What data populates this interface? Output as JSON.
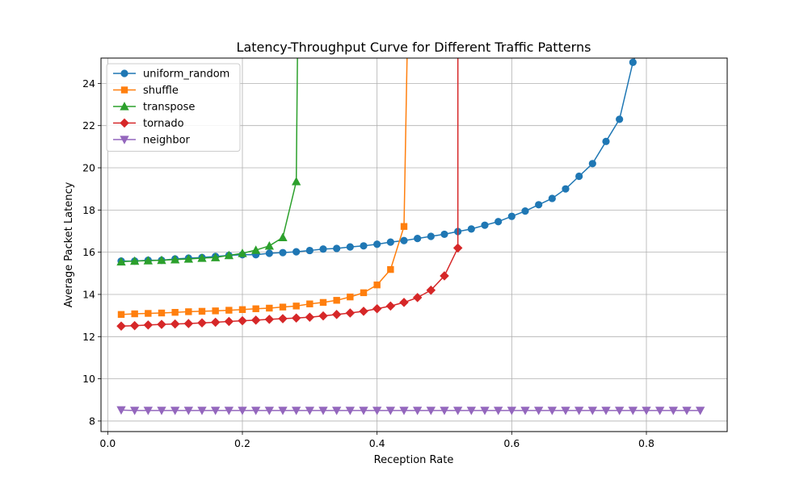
{
  "chart_data": {
    "type": "line",
    "title": "Latency-Throughput Curve for Different Traffic Patterns",
    "xlabel": "Reception Rate",
    "ylabel": "Average Packet Latency",
    "xlim": [
      -0.01,
      0.92
    ],
    "ylim": [
      7.5,
      25.2
    ],
    "xticks": [
      0.0,
      0.2,
      0.4,
      0.6,
      0.8
    ],
    "xtick_labels": [
      "0.0",
      "0.2",
      "0.4",
      "0.6",
      "0.8"
    ],
    "yticks": [
      8,
      10,
      12,
      14,
      16,
      18,
      20,
      22,
      24
    ],
    "ytick_labels": [
      "8",
      "10",
      "12",
      "14",
      "16",
      "18",
      "20",
      "22",
      "24"
    ],
    "grid": true,
    "legend_position": "top-left",
    "series": [
      {
        "name": "uniform_random",
        "color": "#1f77b4",
        "marker": "circle",
        "x": [
          0.02,
          0.04,
          0.06,
          0.08,
          0.1,
          0.12,
          0.14,
          0.16,
          0.18,
          0.2,
          0.22,
          0.24,
          0.26,
          0.28,
          0.3,
          0.32,
          0.34,
          0.36,
          0.38,
          0.4,
          0.42,
          0.44,
          0.46,
          0.48,
          0.5,
          0.52,
          0.54,
          0.56,
          0.58,
          0.6,
          0.62,
          0.64,
          0.66,
          0.68,
          0.7,
          0.72,
          0.74,
          0.76,
          0.78,
          0.8
        ],
        "y": [
          15.58,
          15.58,
          15.62,
          15.62,
          15.68,
          15.72,
          15.75,
          15.8,
          15.85,
          15.88,
          15.88,
          15.95,
          15.98,
          16.02,
          16.08,
          16.15,
          16.18,
          16.25,
          16.3,
          16.38,
          16.48,
          16.55,
          16.65,
          16.75,
          16.85,
          16.98,
          17.1,
          17.28,
          17.45,
          17.7,
          17.95,
          18.25,
          18.55,
          19.0,
          19.6,
          20.2,
          21.25,
          22.3,
          25.0,
          26.5
        ]
      },
      {
        "name": "shuffle",
        "color": "#ff7f0e",
        "marker": "square",
        "x": [
          0.02,
          0.04,
          0.06,
          0.08,
          0.1,
          0.12,
          0.14,
          0.16,
          0.18,
          0.2,
          0.22,
          0.24,
          0.26,
          0.28,
          0.3,
          0.32,
          0.34,
          0.36,
          0.38,
          0.4,
          0.42,
          0.44,
          0.445
        ],
        "y": [
          13.05,
          13.08,
          13.1,
          13.12,
          13.15,
          13.18,
          13.2,
          13.22,
          13.25,
          13.28,
          13.32,
          13.35,
          13.4,
          13.45,
          13.55,
          13.62,
          13.72,
          13.88,
          14.08,
          14.45,
          15.18,
          17.22,
          26.0
        ]
      },
      {
        "name": "transpose",
        "color": "#2ca02c",
        "marker": "triangle-up",
        "x": [
          0.02,
          0.04,
          0.06,
          0.08,
          0.1,
          0.12,
          0.14,
          0.16,
          0.18,
          0.2,
          0.22,
          0.24,
          0.26,
          0.28,
          0.282
        ],
        "y": [
          15.55,
          15.58,
          15.6,
          15.62,
          15.65,
          15.68,
          15.72,
          15.75,
          15.85,
          15.95,
          16.1,
          16.3,
          16.7,
          19.35,
          26.0
        ]
      },
      {
        "name": "tornado",
        "color": "#d62728",
        "marker": "diamond",
        "x": [
          0.02,
          0.04,
          0.06,
          0.08,
          0.1,
          0.12,
          0.14,
          0.16,
          0.18,
          0.2,
          0.22,
          0.24,
          0.26,
          0.28,
          0.3,
          0.32,
          0.34,
          0.36,
          0.38,
          0.4,
          0.42,
          0.44,
          0.46,
          0.48,
          0.5,
          0.52,
          0.52
        ],
        "y": [
          12.5,
          12.52,
          12.55,
          12.58,
          12.6,
          12.62,
          12.65,
          12.68,
          12.72,
          12.75,
          12.78,
          12.82,
          12.85,
          12.88,
          12.92,
          12.98,
          13.05,
          13.12,
          13.2,
          13.32,
          13.45,
          13.62,
          13.85,
          14.2,
          14.88,
          16.2,
          26.0
        ]
      },
      {
        "name": "neighbor",
        "color": "#9467bd",
        "marker": "triangle-down",
        "x": [
          0.02,
          0.04,
          0.06,
          0.08,
          0.1,
          0.12,
          0.14,
          0.16,
          0.18,
          0.2,
          0.22,
          0.24,
          0.26,
          0.28,
          0.3,
          0.32,
          0.34,
          0.36,
          0.38,
          0.4,
          0.42,
          0.44,
          0.46,
          0.48,
          0.5,
          0.52,
          0.54,
          0.56,
          0.58,
          0.6,
          0.62,
          0.64,
          0.66,
          0.68,
          0.7,
          0.72,
          0.74,
          0.76,
          0.78,
          0.8,
          0.82,
          0.84,
          0.86,
          0.88
        ],
        "y": [
          8.52,
          8.5,
          8.5,
          8.5,
          8.5,
          8.5,
          8.5,
          8.5,
          8.5,
          8.5,
          8.5,
          8.5,
          8.5,
          8.5,
          8.5,
          8.5,
          8.5,
          8.5,
          8.5,
          8.5,
          8.5,
          8.5,
          8.5,
          8.5,
          8.5,
          8.5,
          8.5,
          8.5,
          8.5,
          8.5,
          8.5,
          8.5,
          8.5,
          8.5,
          8.5,
          8.5,
          8.5,
          8.5,
          8.5,
          8.5,
          8.5,
          8.5,
          8.5,
          8.5
        ]
      }
    ]
  }
}
